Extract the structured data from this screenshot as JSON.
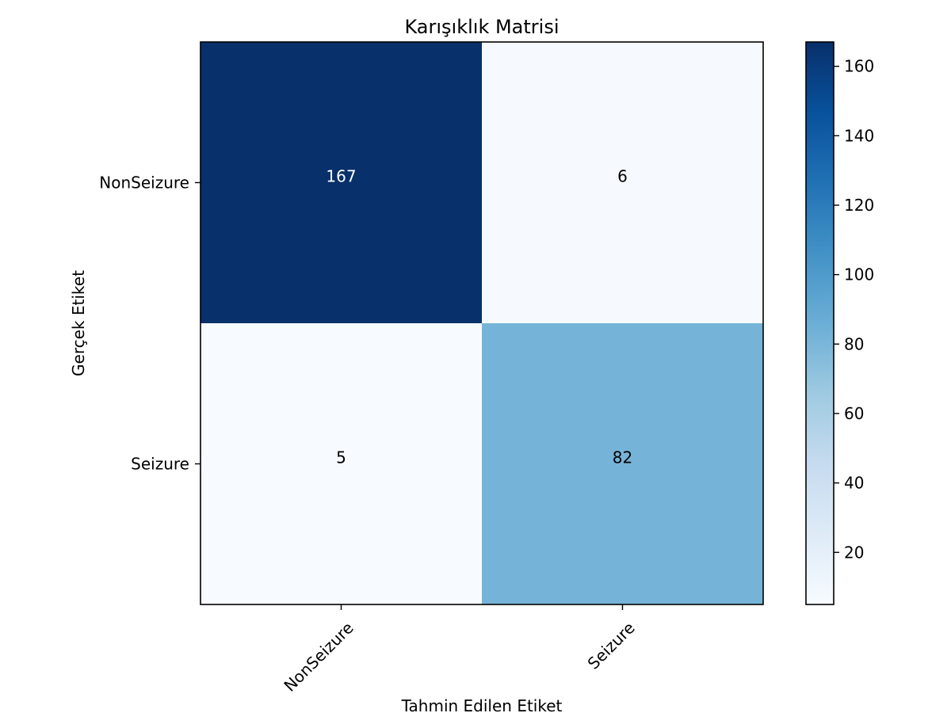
{
  "chart_data": {
    "type": "heatmap",
    "title": "Karışıklık Matrisi",
    "xlabel": "Tahmin Edilen Etiket",
    "ylabel": "Gerçek Etiket",
    "x_categories": [
      "NonSeizure",
      "Seizure"
    ],
    "y_categories": [
      "NonSeizure",
      "Seizure"
    ],
    "values": [
      [
        167,
        6
      ],
      [
        5,
        82
      ]
    ],
    "colormap": "Blues",
    "color_range": [
      5,
      167
    ],
    "colorbar_ticks": [
      20,
      40,
      60,
      80,
      100,
      120,
      140,
      160
    ],
    "grid": false
  }
}
